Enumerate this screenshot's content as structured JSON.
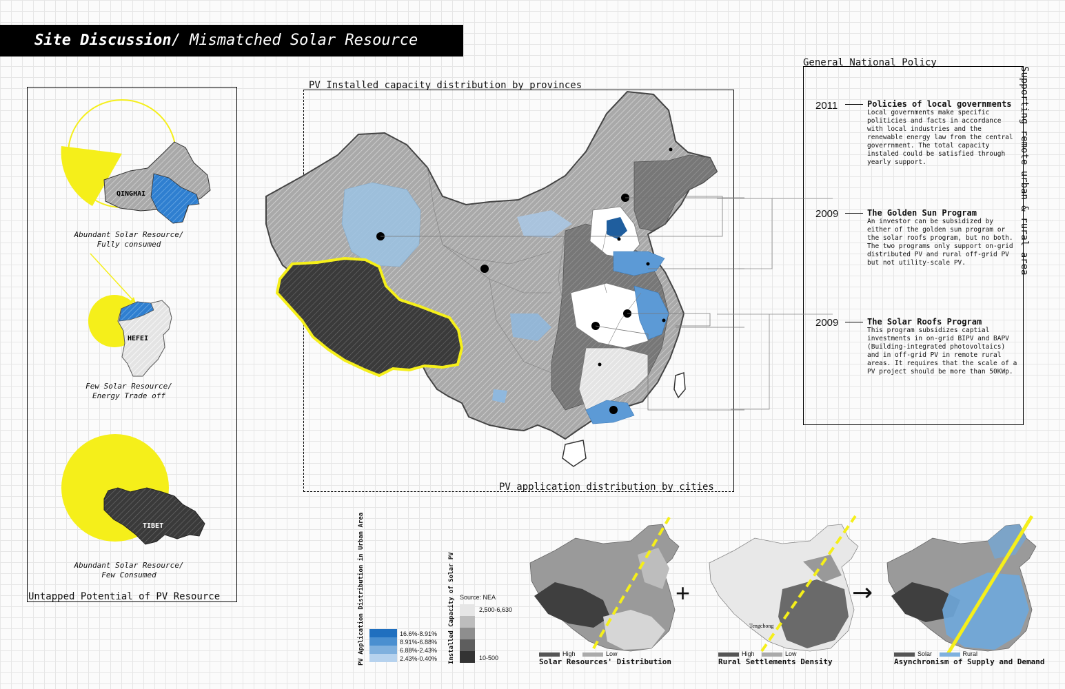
{
  "title": {
    "bold": "Site Discussion",
    "rest": "/ Mismatched Solar Resource"
  },
  "left_panel": {
    "label": "Untapped Potential of PV Resource",
    "regions": [
      {
        "name": "QINGHAI",
        "caption_line1": "Abundant Solar Resource/",
        "caption_line2": "Fully consumed"
      },
      {
        "name": "HEFEI",
        "caption_line1": "Few Solar Resource/",
        "caption_line2": "Energy Trade off"
      },
      {
        "name": "TIBET",
        "caption_line1": "Abundant Solar Resource/",
        "caption_line2": "Few Consumed"
      }
    ]
  },
  "main_map": {
    "top_label": "PV Installed capacity distribution by provinces",
    "bottom_label": "PV application distribution by cities"
  },
  "policy": {
    "heading": "General National Policy",
    "side_label": "Supporting remote urban & rural area",
    "items": [
      {
        "year": "2011",
        "title": "Policies of local governments",
        "desc": "Local governments make specific politicies and facts in accordance with local industries and the renewable energy law from the central goverrnment. The total capacity instaled could be satisfied through yearly support."
      },
      {
        "year": "2009",
        "title": "The Golden Sun Program",
        "desc": "An investor can be subsidized by either of the golden sun program or the solar roofs program, but no both. The two programs only support on-grid distributed PV and rural off-grid PV but not utility-scale PV."
      },
      {
        "year": "2009",
        "title": "The Solar Roofs Program",
        "desc": "This program subsidizes captial investments in on-grid BIPV and BAPV (Building-integrated photovoltaics) and in off-grid PV in remote rural areas. It requires that the scale of a PV project should be more than 50KWp."
      }
    ]
  },
  "legend_urban": {
    "title": "PV Application Distribution in Urban Area",
    "items": [
      {
        "label": "16.6%-8.91%",
        "color": "#1f6fbf"
      },
      {
        "label": "8.91%-6.88%",
        "color": "#4a8fd0"
      },
      {
        "label": "6.88%-2.43%",
        "color": "#7fb0de"
      },
      {
        "label": "2.43%-0.40%",
        "color": "#b6d2ee"
      }
    ]
  },
  "legend_capacity": {
    "title": "Installed Capacity of Solar PV",
    "source": "Source: NEA",
    "top_label": "2,500-6,630",
    "bottom_label": "10-500",
    "colors": [
      "#e6e6e6",
      "#bdbdbd",
      "#8e8e8e",
      "#5e5e5e",
      "#333333"
    ]
  },
  "small_maps": [
    {
      "caption": "Solar Resources' Distribution",
      "legend_a": "High",
      "legend_b": "Low",
      "color_a": "#555555",
      "color_b": "#aaaaaa"
    },
    {
      "caption": "Rural Settlements Density",
      "legend_a": "High",
      "legend_b": "Low",
      "color_a": "#555555",
      "color_b": "#aaaaaa",
      "place": "Tengchong"
    },
    {
      "caption": "Asynchronism of Supply and Demand",
      "legend_a": "Solar",
      "legend_b": "Rural",
      "color_a": "#555555",
      "color_b": "#7fb0de"
    }
  ],
  "operators": {
    "plus": "+",
    "arrow": "→"
  },
  "colors": {
    "accent_yellow": "#f5ef1a",
    "blue": "#3a86cf",
    "dark_gray": "#3c3c3c"
  }
}
